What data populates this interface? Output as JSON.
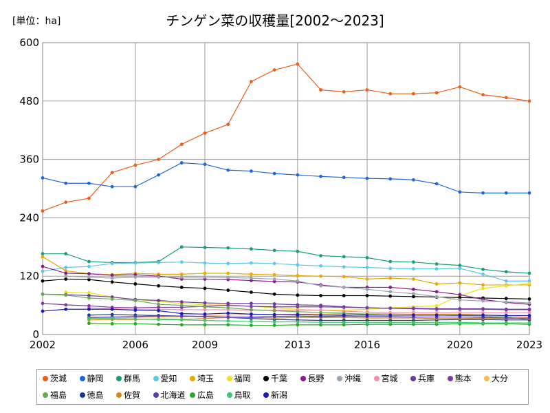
{
  "chart_data": {
    "type": "line",
    "title": "チンゲン菜の収穫量[2002～2023]",
    "unit_label": "[単位：ha]",
    "xlim": [
      2002,
      2023
    ],
    "ylim": [
      0,
      600
    ],
    "x_ticks": [
      2002,
      2006,
      2009,
      2013,
      2016,
      2020,
      2023
    ],
    "y_ticks": [
      0,
      120,
      240,
      360,
      480,
      600
    ],
    "grid": true,
    "legend_position": "bottom",
    "x": [
      2002,
      2003,
      2004,
      2005,
      2006,
      2007,
      2008,
      2009,
      2010,
      2011,
      2012,
      2013,
      2014,
      2015,
      2016,
      2017,
      2018,
      2019,
      2020,
      2021,
      2022,
      2023
    ],
    "series": [
      {
        "name": "茨城",
        "color": "#e8601c",
        "start": 2002,
        "values": [
          254,
          272,
          280,
          333,
          348,
          360,
          391,
          414,
          432,
          520,
          544,
          556,
          503,
          499,
          503,
          495,
          495,
          497,
          509,
          493,
          487,
          480
        ]
      },
      {
        "name": "静岡",
        "color": "#2166d8",
        "start": 2002,
        "values": [
          322,
          311,
          311,
          304,
          304,
          328,
          353,
          350,
          338,
          336,
          331,
          328,
          325,
          323,
          321,
          320,
          318,
          310,
          293,
          291,
          291,
          291
        ]
      },
      {
        "name": "群馬",
        "color": "#1a9c7a",
        "start": 2002,
        "values": [
          166,
          166,
          150,
          148,
          148,
          150,
          180,
          179,
          178,
          176,
          173,
          171,
          162,
          160,
          158,
          150,
          149,
          145,
          142,
          134,
          129,
          126
        ]
      },
      {
        "name": "愛知",
        "color": "#5bc8e6",
        "start": 2002,
        "values": [
          130,
          138,
          140,
          146,
          147,
          148,
          149,
          147,
          146,
          147,
          146,
          143,
          141,
          139,
          138,
          136,
          135,
          135,
          136,
          124,
          110,
          110
        ]
      },
      {
        "name": "埼玉",
        "color": "#e8a800",
        "start": 2002,
        "values": [
          160,
          131,
          125,
          123,
          126,
          124,
          124,
          126,
          126,
          124,
          123,
          121,
          120,
          119,
          114,
          116,
          114,
          104,
          106,
          102,
          102,
          102
        ]
      },
      {
        "name": "福岡",
        "color": "#f0e020",
        "start": 2003,
        "values": [
          null,
          87,
          86,
          77,
          72,
          68,
          64,
          61,
          61,
          58,
          55,
          52,
          50,
          50,
          52,
          55,
          57,
          59,
          80,
          95,
          100,
          105
        ]
      },
      {
        "name": "千葉",
        "color": "#000000",
        "start": 2002,
        "values": [
          110,
          114,
          113,
          108,
          104,
          100,
          97,
          95,
          91,
          87,
          83,
          81,
          80,
          80,
          80,
          79,
          78,
          77,
          76,
          75,
          74,
          73
        ]
      },
      {
        "name": "長野",
        "color": "#8b1a8b",
        "start": 2002,
        "values": [
          140,
          126,
          125,
          122,
          123,
          120,
          114,
          114,
          113,
          111,
          109,
          108,
          102,
          97,
          97,
          97,
          93,
          88,
          82,
          72,
          66,
          62
        ]
      },
      {
        "name": "沖縄",
        "color": "#9aa4b0",
        "start": 2003,
        "values": [
          null,
          120,
          118,
          116,
          118,
          118,
          118,
          118,
          117,
          116,
          114,
          110,
          100,
          97,
          93,
          88,
          84,
          78,
          71,
          69,
          67,
          65
        ]
      },
      {
        "name": "宮城",
        "color": "#f08cb0",
        "start": 2002,
        "values": [
          null,
          null,
          55,
          53,
          52,
          52,
          51,
          51,
          51,
          50,
          50,
          50,
          50,
          48,
          46,
          45,
          45,
          45,
          45,
          45,
          45,
          45
        ]
      },
      {
        "name": "兵庫",
        "color": "#6a3a9a",
        "start": 2002,
        "values": [
          83,
          82,
          80,
          77,
          72,
          70,
          67,
          65,
          64,
          64,
          63,
          61,
          60,
          57,
          55,
          54,
          54,
          53,
          53,
          53,
          52,
          52
        ]
      },
      {
        "name": "熊本",
        "color": "#7a3aa8",
        "start": 2002,
        "values": [
          64,
          61,
          59,
          56,
          55,
          56,
          56,
          58,
          60,
          58,
          57,
          57,
          57,
          56,
          55,
          54,
          53,
          52,
          52,
          52,
          51,
          51
        ]
      },
      {
        "name": "大分",
        "color": "#f8b850",
        "start": 2004,
        "values": [
          null,
          null,
          34,
          35,
          35,
          36,
          37,
          38,
          40,
          41,
          41,
          42,
          42,
          43,
          43,
          43,
          42,
          42,
          42,
          40,
          38,
          36
        ]
      },
      {
        "name": "福島",
        "color": "#6aa84f",
        "start": 2002,
        "values": [
          83,
          81,
          75,
          73,
          70,
          62,
          60,
          57,
          55,
          51,
          49,
          47,
          45,
          44,
          41,
          40,
          40,
          40,
          39,
          38,
          36,
          30
        ]
      },
      {
        "name": "徳島",
        "color": "#1e3a8a",
        "start": 2004,
        "values": [
          null,
          null,
          40,
          41,
          40,
          39,
          38,
          37,
          35,
          33,
          31,
          30,
          29,
          29,
          29,
          29,
          29,
          30,
          31,
          31,
          30,
          30
        ]
      },
      {
        "name": "佐賀",
        "color": "#d88a10",
        "start": 2004,
        "values": [
          null,
          null,
          30,
          31,
          31,
          32,
          31,
          33,
          35,
          35,
          34,
          35,
          35,
          35,
          34,
          34,
          34,
          33,
          33,
          33,
          33,
          33
        ]
      },
      {
        "name": "北海道",
        "color": "#5a3ab8",
        "start": 2004,
        "values": [
          null,
          null,
          35,
          36,
          37,
          38,
          38,
          37,
          36,
          36,
          37,
          38,
          37,
          38,
          37,
          37,
          36,
          36,
          36,
          35,
          34,
          34
        ]
      },
      {
        "name": "広島",
        "color": "#2aa82a",
        "start": 2004,
        "values": [
          null,
          null,
          23,
          22,
          22,
          21,
          20,
          20,
          20,
          19,
          19,
          20,
          20,
          20,
          21,
          21,
          21,
          21,
          22,
          22,
          22,
          21
        ]
      },
      {
        "name": "鳥取",
        "color": "#3ac870",
        "start": 2004,
        "values": [
          null,
          null,
          33,
          33,
          32,
          31,
          30,
          29,
          28,
          27,
          26,
          26,
          25,
          25,
          25,
          25,
          25,
          25,
          25,
          24,
          24,
          24
        ]
      },
      {
        "name": "新潟",
        "color": "#1a1ab8",
        "start": 2002,
        "values": [
          48,
          52,
          52,
          52,
          50,
          49,
          43,
          42,
          44,
          42,
          41,
          41,
          40,
          40,
          40,
          40,
          40,
          40,
          40,
          40,
          39,
          39
        ]
      }
    ]
  }
}
